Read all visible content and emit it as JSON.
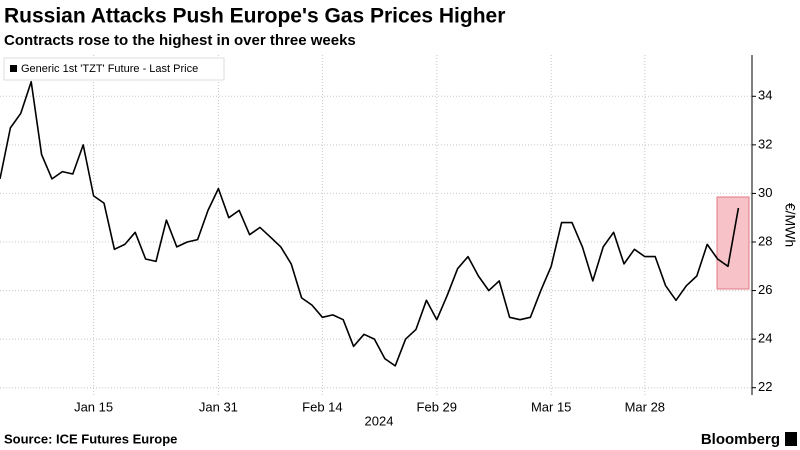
{
  "chart_data": {
    "type": "line",
    "title": "Russian Attacks Push Europe's Gas Prices Higher",
    "subtitle": "Contracts rose to the highest in over three weeks",
    "source": "Source: ICE Futures Europe",
    "brand": "Bloomberg",
    "x_label": "2024",
    "y_label": "€/MWh",
    "categories": [
      null,
      null,
      null,
      null,
      null,
      null,
      null,
      null,
      null,
      "Jan 15",
      null,
      null,
      null,
      null,
      null,
      null,
      null,
      null,
      null,
      null,
      null,
      "Jan 31",
      null,
      null,
      null,
      null,
      null,
      null,
      null,
      null,
      null,
      "Feb 14",
      null,
      null,
      null,
      null,
      null,
      null,
      null,
      null,
      null,
      null,
      "Feb 29",
      null,
      null,
      null,
      null,
      null,
      null,
      null,
      null,
      null,
      null,
      "Mar 15",
      null,
      null,
      null,
      null,
      null,
      null,
      null,
      null,
      "Mar 28",
      null,
      null,
      null,
      null,
      null,
      null,
      null,
      null,
      null
    ],
    "series": [
      {
        "name": "Generic 1st 'TZT' Future - Last Price",
        "color": "#000000",
        "values": [
          30.6,
          32.7,
          33.3,
          34.6,
          31.6,
          30.6,
          30.9,
          30.8,
          32.0,
          29.9,
          29.6,
          27.7,
          27.9,
          28.4,
          27.3,
          27.2,
          28.9,
          27.8,
          28.0,
          28.1,
          29.3,
          30.2,
          29.0,
          29.3,
          28.3,
          28.6,
          28.2,
          27.8,
          27.1,
          25.7,
          25.4,
          24.9,
          25.0,
          24.8,
          23.7,
          24.2,
          24.0,
          23.2,
          22.9,
          24.0,
          24.4,
          25.6,
          24.8,
          25.8,
          26.9,
          27.4,
          26.6,
          26.0,
          26.4,
          24.9,
          24.8,
          24.9,
          26.0,
          27.0,
          28.8,
          28.8,
          27.8,
          26.4,
          27.8,
          28.4,
          27.1,
          27.7,
          27.4,
          27.4,
          26.2,
          25.6,
          26.2,
          26.6,
          27.9,
          27.3,
          27.0,
          29.4
        ]
      }
    ],
    "ylim": [
      21.7,
      35.7
    ],
    "yticks": [
      22,
      24,
      26,
      28,
      30,
      32,
      34
    ],
    "grid": true
  }
}
